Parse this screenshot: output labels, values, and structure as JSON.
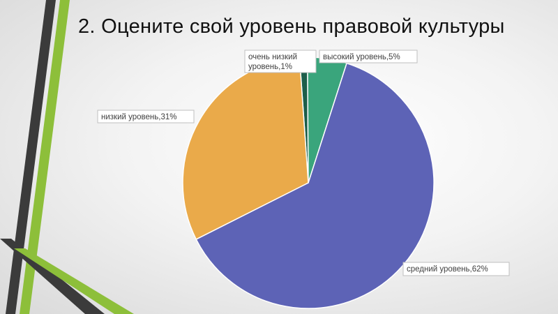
{
  "slide": {
    "title": "2. Оцените свой уровень правовой культуры"
  },
  "colors": {
    "accent_green": "#8dbf3a",
    "accent_dark": "#3b3b3b"
  },
  "chart_data": {
    "type": "pie",
    "title": "",
    "slices": [
      {
        "label": "очень низкий уровень",
        "value": 1,
        "color": "#1d5e4a",
        "label_lines": [
          "очень низкий",
          "уровень,1%"
        ]
      },
      {
        "label": "высокий уровень",
        "value": 5,
        "color": "#3aa57c",
        "label_lines": [
          "высокий уровень,5%"
        ]
      },
      {
        "label": "средний уровень",
        "value": 62,
        "color": "#5d63b6",
        "label_lines": [
          "средний уровень,62%"
        ]
      },
      {
        "label": "низкий уровень",
        "value": 31,
        "color": "#eaaa4a",
        "label_lines": [
          "низкий уровень,31%"
        ]
      }
    ]
  }
}
